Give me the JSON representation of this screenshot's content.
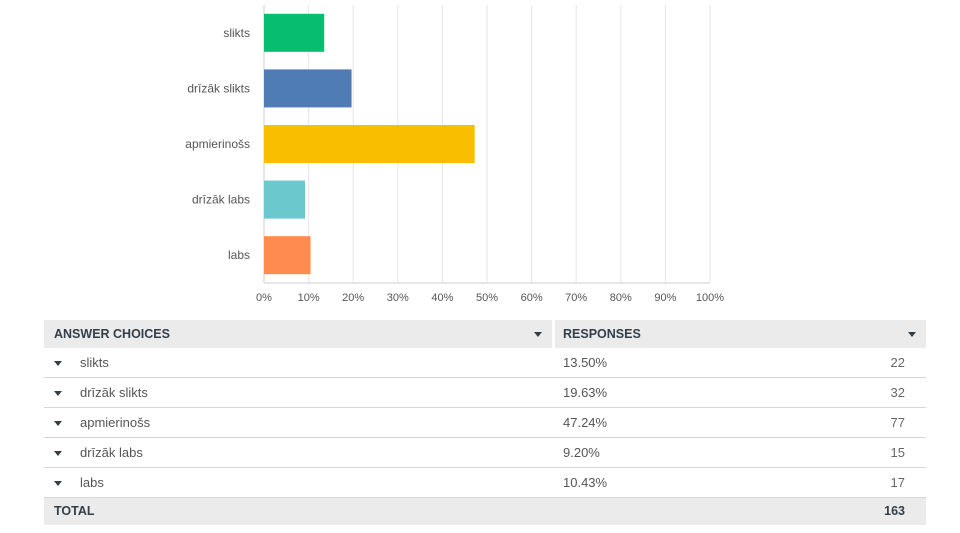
{
  "chart_data": {
    "type": "bar",
    "orientation": "horizontal",
    "categories": [
      "slikts",
      "drīzāk slikts",
      "apmierinošs",
      "drīzāk labs",
      "labs"
    ],
    "values": [
      13.5,
      19.63,
      47.24,
      9.2,
      10.43
    ],
    "colors": [
      "#05be70",
      "#507cb6",
      "#f9be00",
      "#6bc8cd",
      "#ff8b4f"
    ],
    "xlim": [
      0,
      100
    ],
    "x_ticks": [
      "0%",
      "10%",
      "20%",
      "30%",
      "40%",
      "50%",
      "60%",
      "70%",
      "80%",
      "90%",
      "100%"
    ],
    "grid": true
  },
  "table": {
    "headers": {
      "choice": "ANSWER CHOICES",
      "responses": "RESPONSES",
      "sort_icon": "caret-down-icon"
    },
    "rows": [
      {
        "label": "slikts",
        "percent": "13.50%",
        "count": "22"
      },
      {
        "label": "drīzāk slikts",
        "percent": "19.63%",
        "count": "32"
      },
      {
        "label": "apmierinošs",
        "percent": "47.24%",
        "count": "77"
      },
      {
        "label": "drīzāk labs",
        "percent": "9.20%",
        "count": "15"
      },
      {
        "label": "labs",
        "percent": "10.43%",
        "count": "17"
      }
    ],
    "total": {
      "label": "TOTAL",
      "count": "163"
    }
  }
}
